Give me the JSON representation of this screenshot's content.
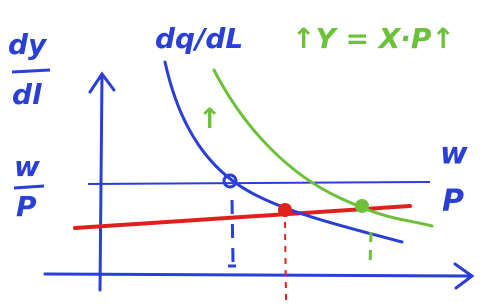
{
  "labels": {
    "y_top": "dy",
    "y_bottom": "dl",
    "curve_blue": "dq/dL",
    "equation": "↑Y = X·P↑",
    "shift_arrow": "↑",
    "left_w": "w",
    "left_p": "P",
    "right_w": "w",
    "right_p": "P"
  }
}
